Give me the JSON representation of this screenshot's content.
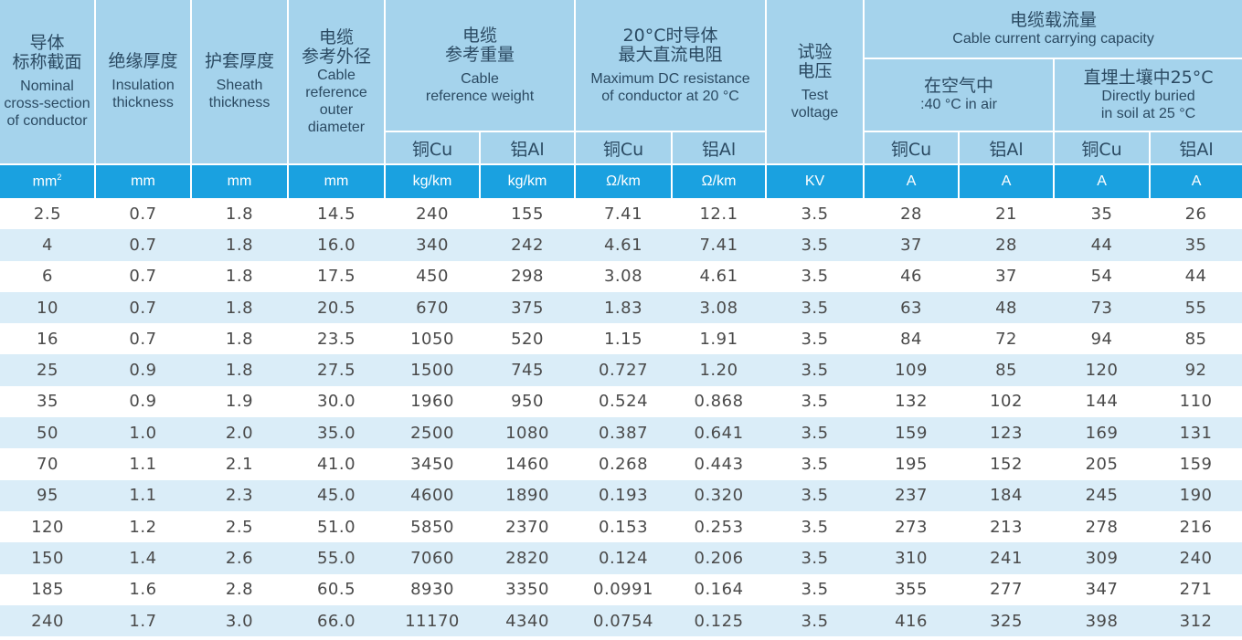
{
  "headers": {
    "section": {
      "zh": "导体\n标称截面",
      "en": "Nominal\ncross-section\nof conductor"
    },
    "insulation": {
      "zh": "绝缘厚度",
      "en": "Insulation\nthickness"
    },
    "sheath": {
      "zh": "护套厚度",
      "en": "Sheath\nthickness"
    },
    "diameter": {
      "zh": "电缆\n参考外径",
      "en": "Cable\nreference\nouter\ndiameter"
    },
    "weight": {
      "zh": "电缆\n参考重量",
      "en": "Cable\nreference weight"
    },
    "resistance": {
      "zh": "20°C时导体\n最大直流电阻",
      "en": "Maximum DC resistance\nof conductor at 20 °C"
    },
    "voltage": {
      "zh": "试验\n电压",
      "en": "Test\nvoltage"
    },
    "capacity": {
      "zh": "电缆载流量",
      "en": "Cable current carrying capacity"
    },
    "air": {
      "zh": "在空气中",
      "en": ":40 °C in air"
    },
    "soil": {
      "zh": "直埋土壤中25°C",
      "en": "Directly buried\nin soil at 25 °C"
    },
    "sub": {
      "weight_cu": "铜Cu",
      "weight_al": "铝Al",
      "res_cu": "铜Cu",
      "res_al": "铝Al",
      "air_cu": "铜Cu",
      "air_al": "铝Al",
      "soil_cu": "铜Cu",
      "soil_al": "铝Al"
    }
  },
  "units": {
    "section": "mm",
    "section_sup": "2",
    "insulation": "mm",
    "sheath": "mm",
    "diameter": "mm",
    "weight_cu": "kg/km",
    "weight_al": "kg/km",
    "res_cu": "Ω/km",
    "res_al": "Ω/km",
    "voltage": "KV",
    "air_cu": "A",
    "air_al": "A",
    "soil_cu": "A",
    "soil_al": "A"
  },
  "rows": [
    [
      "2.5",
      "0.7",
      "1.8",
      "14.5",
      "240",
      "155",
      "7.41",
      "12.1",
      "3.5",
      "28",
      "21",
      "35",
      "26"
    ],
    [
      "4",
      "0.7",
      "1.8",
      "16.0",
      "340",
      "242",
      "4.61",
      "7.41",
      "3.5",
      "37",
      "28",
      "44",
      "35"
    ],
    [
      "6",
      "0.7",
      "1.8",
      "17.5",
      "450",
      "298",
      "3.08",
      "4.61",
      "3.5",
      "46",
      "37",
      "54",
      "44"
    ],
    [
      "10",
      "0.7",
      "1.8",
      "20.5",
      "670",
      "375",
      "1.83",
      "3.08",
      "3.5",
      "63",
      "48",
      "73",
      "55"
    ],
    [
      "16",
      "0.7",
      "1.8",
      "23.5",
      "1050",
      "520",
      "1.15",
      "1.91",
      "3.5",
      "84",
      "72",
      "94",
      "85"
    ],
    [
      "25",
      "0.9",
      "1.8",
      "27.5",
      "1500",
      "745",
      "0.727",
      "1.20",
      "3.5",
      "109",
      "85",
      "120",
      "92"
    ],
    [
      "35",
      "0.9",
      "1.9",
      "30.0",
      "1960",
      "950",
      "0.524",
      "0.868",
      "3.5",
      "132",
      "102",
      "144",
      "110"
    ],
    [
      "50",
      "1.0",
      "2.0",
      "35.0",
      "2500",
      "1080",
      "0.387",
      "0.641",
      "3.5",
      "159",
      "123",
      "169",
      "131"
    ],
    [
      "70",
      "1.1",
      "2.1",
      "41.0",
      "3450",
      "1460",
      "0.268",
      "0.443",
      "3.5",
      "195",
      "152",
      "205",
      "159"
    ],
    [
      "95",
      "1.1",
      "2.3",
      "45.0",
      "4600",
      "1890",
      "0.193",
      "0.320",
      "3.5",
      "237",
      "184",
      "245",
      "190"
    ],
    [
      "120",
      "1.2",
      "2.5",
      "51.0",
      "5850",
      "2370",
      "0.153",
      "0.253",
      "3.5",
      "273",
      "213",
      "278",
      "216"
    ],
    [
      "150",
      "1.4",
      "2.6",
      "55.0",
      "7060",
      "2820",
      "0.124",
      "0.206",
      "3.5",
      "310",
      "241",
      "309",
      "240"
    ],
    [
      "185",
      "1.6",
      "2.8",
      "60.5",
      "8930",
      "3350",
      "0.0991",
      "0.164",
      "3.5",
      "355",
      "277",
      "347",
      "271"
    ],
    [
      "240",
      "1.7",
      "3.0",
      "66.0",
      "11170",
      "4340",
      "0.0754",
      "0.125",
      "3.5",
      "416",
      "325",
      "398",
      "312"
    ]
  ],
  "colors": {
    "header_bg": "#a5d3ec",
    "unit_bg": "#1aa1e0",
    "stripe_bg": "#daedf8",
    "text": "#4a4a4a"
  }
}
